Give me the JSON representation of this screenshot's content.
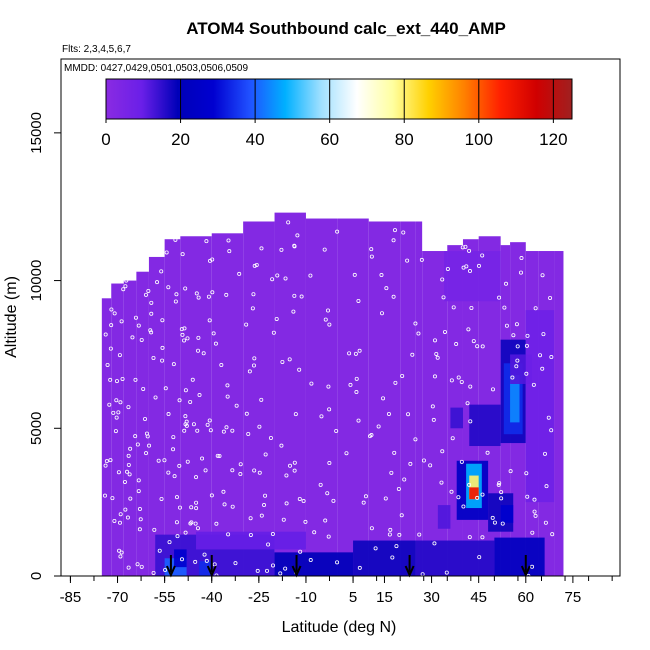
{
  "chart_data": {
    "type": "heatmap",
    "title": "ATOM4 Southbound calc_ext_440_AMP",
    "flights_note": "Flts: 2,3,4,5,6,7",
    "dates_note": "MMDD: 0427,0429,0501,0503,0506,0509",
    "xlabel": "Latitude (deg N)",
    "ylabel": "Altitude (m)",
    "xlim": [
      -88,
      90
    ],
    "ylim": [
      0,
      17500
    ],
    "x_ticks": [
      -85,
      -70,
      -55,
      -40,
      -25,
      -10,
      5,
      15,
      30,
      45,
      60,
      75
    ],
    "y_ticks": [
      0,
      5000,
      10000,
      15000
    ],
    "y_tick_labels": [
      "0",
      "5000",
      "10000",
      "15000"
    ],
    "colorbar": {
      "min": 0,
      "max": 125,
      "ticks": [
        0,
        20,
        40,
        60,
        80,
        100,
        120
      ],
      "colors": [
        "#8a2be2",
        "#6a1fe8",
        "#0000b8",
        "#0000d0",
        "#2050ff",
        "#00b0ff",
        "#a0e0ff",
        "#ffffff",
        "#ffffa0",
        "#ffd000",
        "#ff8000",
        "#ff2000",
        "#d00000",
        "#a02020"
      ]
    },
    "background_value": 2,
    "coverage": [
      [
        -75,
        0,
        9400
      ],
      [
        -72,
        0,
        9900
      ],
      [
        -68,
        0,
        10000
      ],
      [
        -64,
        0,
        10300
      ],
      [
        -60,
        0,
        10800
      ],
      [
        -55,
        0,
        11400
      ],
      [
        -50,
        0,
        11500
      ],
      [
        -40,
        0,
        11600
      ],
      [
        -30,
        0,
        12000
      ],
      [
        -20,
        0,
        12300
      ],
      [
        -10,
        0,
        12100
      ],
      [
        0,
        0,
        12100
      ],
      [
        10,
        0,
        12000
      ],
      [
        20,
        0,
        12000
      ],
      [
        25,
        0,
        12000
      ],
      [
        27,
        0,
        11000
      ],
      [
        35,
        0,
        11200
      ],
      [
        40,
        0,
        11400
      ],
      [
        45,
        0,
        11500
      ],
      [
        52,
        0,
        11200
      ],
      [
        55,
        0,
        11300
      ],
      [
        60,
        0,
        11000
      ],
      [
        64,
        0,
        11000
      ],
      [
        69,
        0,
        11000
      ]
    ],
    "features": [
      {
        "lat": [
          -58,
          -20
        ],
        "alt": [
          0,
          1400
        ],
        "value": 14
      },
      {
        "lat": [
          -45,
          -10
        ],
        "alt": [
          900,
          1500
        ],
        "value": 10
      },
      {
        "lat": [
          -55,
          -48
        ],
        "alt": [
          0,
          600
        ],
        "value": 40
      },
      {
        "lat": [
          -52,
          -48
        ],
        "alt": [
          300,
          900
        ],
        "value": 28
      },
      {
        "lat": [
          -44,
          -40
        ],
        "alt": [
          0,
          500
        ],
        "value": 34
      },
      {
        "lat": [
          -20,
          5
        ],
        "alt": [
          0,
          800
        ],
        "value": 20
      },
      {
        "lat": [
          5,
          25
        ],
        "alt": [
          0,
          1200
        ],
        "value": 18
      },
      {
        "lat": [
          25,
          50
        ],
        "alt": [
          0,
          1200
        ],
        "value": 16
      },
      {
        "lat": [
          50,
          66
        ],
        "alt": [
          0,
          1300
        ],
        "value": 22
      },
      {
        "lat": [
          32,
          36
        ],
        "alt": [
          1600,
          2400
        ],
        "value": 12
      },
      {
        "lat": [
          36,
          40
        ],
        "alt": [
          5000,
          5700
        ],
        "value": 14
      },
      {
        "lat": [
          42,
          52
        ],
        "alt": [
          4400,
          5800
        ],
        "value": 16
      },
      {
        "lat": [
          38,
          48
        ],
        "alt": [
          1900,
          3900
        ],
        "value": 24
      },
      {
        "lat": [
          41,
          46
        ],
        "alt": [
          2300,
          3800
        ],
        "value": 48
      },
      {
        "lat": [
          42,
          45
        ],
        "alt": [
          2600,
          3400
        ],
        "value": 80
      },
      {
        "lat": [
          42,
          45
        ],
        "alt": [
          2600,
          3000
        ],
        "value": 110
      },
      {
        "lat": [
          52,
          60
        ],
        "alt": [
          4500,
          8000
        ],
        "value": 18
      },
      {
        "lat": [
          53,
          59
        ],
        "alt": [
          4800,
          7200
        ],
        "value": 34
      },
      {
        "lat": [
          55,
          58
        ],
        "alt": [
          5200,
          6800
        ],
        "value": 44
      },
      {
        "lat": [
          48,
          56
        ],
        "alt": [
          1500,
          2800
        ],
        "value": 18
      },
      {
        "lat": [
          52,
          56
        ],
        "alt": [
          1800,
          2400
        ],
        "value": 28
      },
      {
        "lat": [
          55,
          62
        ],
        "alt": [
          6500,
          7500
        ],
        "value": 12
      },
      {
        "lat": [
          34,
          52
        ],
        "alt": [
          9300,
          11000
        ],
        "value": 6
      },
      {
        "lat": [
          60,
          69
        ],
        "alt": [
          2500,
          9000
        ],
        "value": 8
      }
    ],
    "arrows_lat": [
      -53,
      -40,
      -13,
      23,
      60
    ]
  }
}
